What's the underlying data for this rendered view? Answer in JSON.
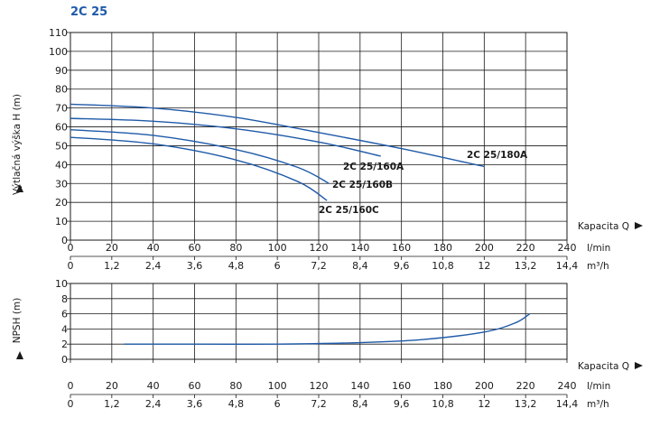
{
  "title": "2C 25",
  "chart_data": [
    {
      "type": "line",
      "ylabel": "Výtlačná výška H (m)",
      "xlabel": "Kapacita Q",
      "x_unit_primary": "l/min",
      "x_unit_secondary": "m³/h",
      "xlim": [
        0,
        240
      ],
      "ylim": [
        0,
        110
      ],
      "y_ticks": [
        "0",
        "10",
        "20",
        "30",
        "40",
        "50",
        "60",
        "70",
        "80",
        "90",
        "100",
        "110"
      ],
      "x_ticks_primary": [
        "0",
        "20",
        "40",
        "60",
        "80",
        "100",
        "120",
        "140",
        "160",
        "180",
        "200",
        "220",
        "240"
      ],
      "x_ticks_secondary": [
        "0",
        "1,2",
        "2,4",
        "3,6",
        "4,8",
        "6",
        "7,2",
        "8,4",
        "9,6",
        "10,8",
        "12",
        "13,2",
        "14,4"
      ],
      "grid": true,
      "series": [
        {
          "name": "2C 25/180A",
          "x": [
            0,
            40,
            80,
            120,
            160,
            200
          ],
          "y": [
            72,
            70,
            65,
            57,
            48.5,
            39
          ]
        },
        {
          "name": "2C 25/160A",
          "x": [
            0,
            40,
            80,
            120,
            150
          ],
          "y": [
            64.5,
            63,
            59,
            52,
            44.5
          ]
        },
        {
          "name": "2C 25/160B",
          "x": [
            0,
            40,
            80,
            110,
            125
          ],
          "y": [
            58.5,
            55.5,
            48,
            38.5,
            30
          ]
        },
        {
          "name": "2C 25/160C",
          "x": [
            0,
            40,
            80,
            110,
            124
          ],
          "y": [
            54.5,
            51,
            42.5,
            31,
            21
          ]
        }
      ]
    },
    {
      "type": "line",
      "ylabel": "NPSH (m)",
      "xlabel": "Kapacita Q",
      "x_unit_primary": "l/min",
      "x_unit_secondary": "m³/h",
      "xlim": [
        0,
        240
      ],
      "ylim": [
        0,
        10
      ],
      "y_ticks": [
        "0",
        "2",
        "4",
        "6",
        "8",
        "10"
      ],
      "x_ticks_primary": [
        "0",
        "20",
        "40",
        "60",
        "80",
        "100",
        "120",
        "140",
        "160",
        "180",
        "200",
        "220",
        "240"
      ],
      "x_ticks_secondary": [
        "0",
        "1,2",
        "2,4",
        "3,6",
        "4,8",
        "6",
        "7,2",
        "8,4",
        "9,6",
        "10,8",
        "12",
        "13,2",
        "14,4"
      ],
      "grid": true,
      "series": [
        {
          "name": "",
          "x": [
            26,
            60,
            100,
            140,
            170,
            200,
            215,
            222
          ],
          "y": [
            2,
            2,
            2,
            2.2,
            2.6,
            3.6,
            4.8,
            6
          ]
        }
      ]
    }
  ]
}
